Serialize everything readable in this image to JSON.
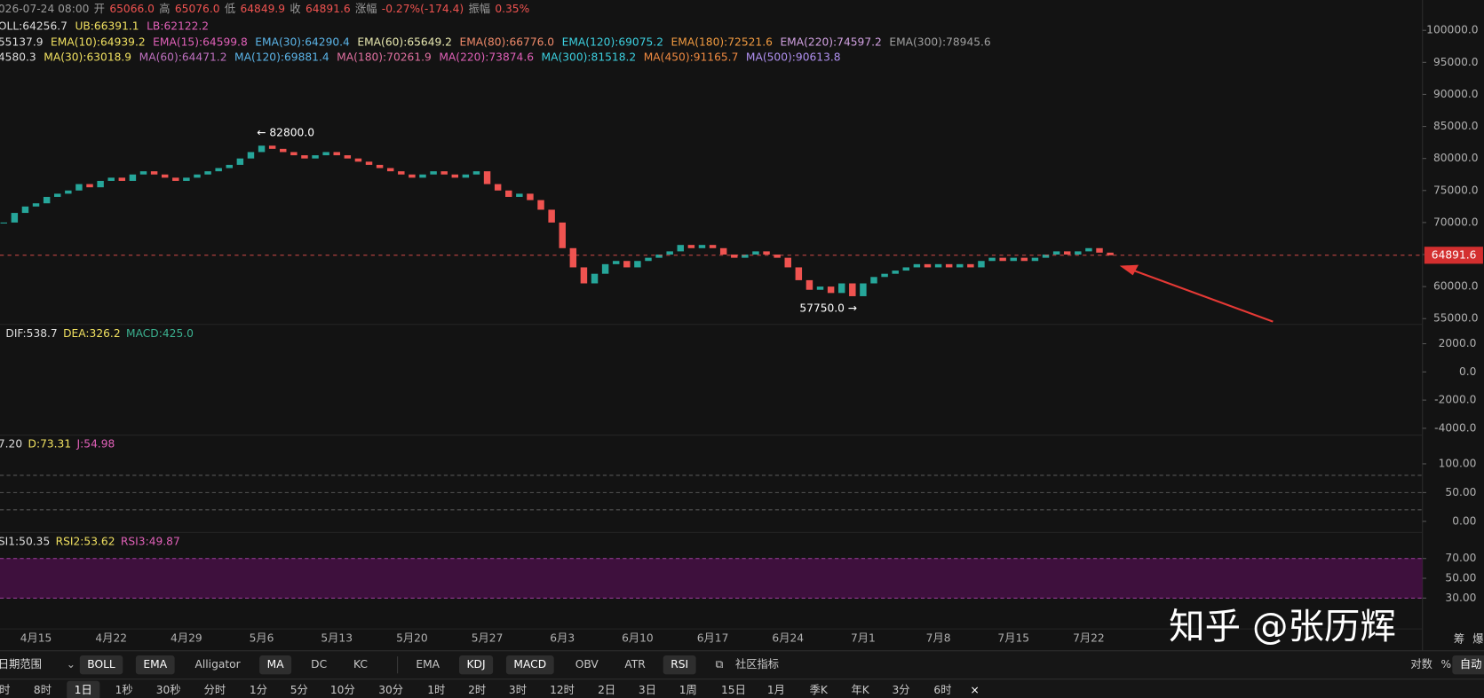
{
  "header": {
    "quote": [
      {
        "text": "026-07-24 08:00",
        "color": "#9a9a9a"
      },
      {
        "text": "开",
        "color": "#9a9a9a"
      },
      {
        "text": "65066.0",
        "color": "#ef5350"
      },
      {
        "text": "高",
        "color": "#9a9a9a"
      },
      {
        "text": "65076.0",
        "color": "#ef5350"
      },
      {
        "text": "低",
        "color": "#9a9a9a"
      },
      {
        "text": "64849.9",
        "color": "#ef5350"
      },
      {
        "text": "收",
        "color": "#9a9a9a"
      },
      {
        "text": "64891.6",
        "color": "#ef5350"
      },
      {
        "text": "涨幅",
        "color": "#9a9a9a"
      },
      {
        "text": "-0.27%(-174.4)",
        "color": "#ef5350"
      },
      {
        "text": "振幅",
        "color": "#9a9a9a"
      },
      {
        "text": "0.35%",
        "color": "#ef5350"
      }
    ],
    "boll": [
      {
        "text": "OLL:64256.7",
        "color": "#dddddd"
      },
      {
        "text": "UB:66391.1",
        "color": "#f0e060"
      },
      {
        "text": "LB:62122.2",
        "color": "#e060b8"
      }
    ],
    "ema": [
      {
        "text": "55137.9",
        "color": "#dddddd"
      },
      {
        "text": "EMA(10):64939.2",
        "color": "#f0e060"
      },
      {
        "text": "EMA(15):64599.8",
        "color": "#e060b8"
      },
      {
        "text": "EMA(30):64290.4",
        "color": "#5bb4e8"
      },
      {
        "text": "EMA(60):65649.2",
        "color": "#e8e8b0"
      },
      {
        "text": "EMA(80):66776.0",
        "color": "#f08a6a"
      },
      {
        "text": "EMA(120):69075.2",
        "color": "#3cd0e0"
      },
      {
        "text": "EMA(180):72521.6",
        "color": "#f09a40"
      },
      {
        "text": "EMA(220):74597.2",
        "color": "#d0a0e0"
      },
      {
        "text": "EMA(300):78945.6",
        "color": "#a0a0a0"
      }
    ],
    "ma": [
      {
        "text": "4580.3",
        "color": "#dddddd"
      },
      {
        "text": "MA(30):63018.9",
        "color": "#f0e060"
      },
      {
        "text": "MA(60):64471.2",
        "color": "#c070c0"
      },
      {
        "text": "MA(120):69881.4",
        "color": "#5bb4e8"
      },
      {
        "text": "MA(180):70261.9",
        "color": "#e070a0"
      },
      {
        "text": "MA(220):73874.6",
        "color": "#e060b8"
      },
      {
        "text": "MA(300):81518.2",
        "color": "#3cd0e0"
      },
      {
        "text": "MA(450):91165.7",
        "color": "#f08a40"
      },
      {
        "text": "MA(500):90613.8",
        "color": "#b090f0"
      }
    ]
  },
  "chart_data": {
    "type": "candlestick",
    "up_color": "#26a69a",
    "down_color": "#ef5350",
    "closes": [
      70000,
      71500,
      72500,
      73000,
      74000,
      74500,
      75000,
      76000,
      75500,
      76500,
      77000,
      76500,
      77500,
      78000,
      77500,
      77000,
      76500,
      77000,
      77500,
      78000,
      78500,
      79000,
      80000,
      81000,
      82000,
      81500,
      81000,
      80500,
      80000,
      80500,
      81000,
      80500,
      80000,
      79500,
      79000,
      78500,
      78000,
      77500,
      77000,
      77500,
      78000,
      77500,
      77000,
      77500,
      78000,
      76000,
      75000,
      74000,
      74500,
      73500,
      72000,
      70000,
      66000,
      63000,
      60500,
      62000,
      63500,
      64000,
      63000,
      64000,
      64500,
      65000,
      65500,
      66500,
      66000,
      66500,
      66000,
      65000,
      64500,
      65000,
      65500,
      65000,
      64500,
      63000,
      61000,
      59500,
      60000,
      59000,
      60500,
      58500,
      60500,
      61500,
      62000,
      62500,
      63000,
      63500,
      63000,
      63500,
      63000,
      63500,
      63000,
      64000,
      64500,
      64000,
      64500,
      64000,
      64500,
      65000,
      65500,
      65000,
      65500,
      66000,
      65300,
      64891.6
    ],
    "categories": [
      null,
      null,
      null,
      "4月15",
      null,
      null,
      null,
      null,
      null,
      null,
      "4月22",
      null,
      null,
      null,
      null,
      null,
      null,
      "4月29",
      null,
      null,
      null,
      null,
      null,
      null,
      "5月6",
      null,
      null,
      null,
      null,
      null,
      null,
      "5月13",
      null,
      null,
      null,
      null,
      null,
      null,
      "5月20",
      null,
      null,
      null,
      null,
      null,
      null,
      "5月27",
      null,
      null,
      null,
      null,
      null,
      null,
      "6月3",
      null,
      null,
      null,
      null,
      null,
      null,
      "6月10",
      null,
      null,
      null,
      null,
      null,
      null,
      "6月17",
      null,
      null,
      null,
      null,
      null,
      null,
      "6月24",
      null,
      null,
      null,
      null,
      null,
      null,
      "7月1",
      null,
      null,
      null,
      null,
      null,
      null,
      "7月8",
      null,
      null,
      null,
      null,
      null,
      null,
      "7月15",
      null,
      null,
      null,
      null,
      null,
      null,
      "7月22",
      null,
      null
    ],
    "ylim": [
      53800,
      104000
    ],
    "yticks": [
      {
        "value": 100000,
        "label": "100000.0"
      },
      {
        "value": 95000,
        "label": "95000.0"
      },
      {
        "value": 90000,
        "label": "90000.0"
      },
      {
        "value": 85000,
        "label": "85000.0"
      },
      {
        "value": 80000,
        "label": "80000.0"
      },
      {
        "value": 75000,
        "label": "75000.0"
      },
      {
        "value": 70000,
        "label": "70000.0"
      },
      {
        "value": 65000,
        "label": "65000.0"
      },
      {
        "value": 60000,
        "label": "60000.0"
      },
      {
        "value": 55000,
        "label": "55000.0"
      }
    ],
    "last_price": {
      "value": 64891.6,
      "label": "64891.6"
    },
    "annotations": [
      {
        "text": "← 82800.0",
        "value": 82800,
        "index": 24,
        "anchor": "start"
      },
      {
        "text": "57750.0 →",
        "value": 57750,
        "index": 79,
        "anchor": "end"
      }
    ]
  },
  "macd": {
    "legend": [
      {
        "text": "DIF:538.7",
        "color": "#dddddd"
      },
      {
        "text": "DEA:326.2",
        "color": "#f0e060"
      },
      {
        "text": "MACD:425.0",
        "color": "#3bb08f"
      }
    ],
    "ylim": [
      -4480,
      3370
    ],
    "yticks": [
      {
        "value": 2000,
        "label": "2000.0"
      },
      {
        "value": 0,
        "label": "0.0"
      },
      {
        "value": -2000,
        "label": "-2000.0"
      },
      {
        "value": -4000,
        "label": "-4000.0"
      }
    ]
  },
  "kdj": {
    "legend": [
      {
        "text": "7.20",
        "color": "#dddddd"
      },
      {
        "text": "D:73.31",
        "color": "#f0e060"
      },
      {
        "text": "J:54.98",
        "color": "#e060b8"
      }
    ],
    "ylim": [
      -19.4,
      150
    ],
    "yticks": [
      {
        "value": 100,
        "label": "100.00"
      },
      {
        "value": 50,
        "label": "50.00"
      },
      {
        "value": 0,
        "label": "0.00"
      }
    ],
    "guides": [
      80,
      50,
      20
    ]
  },
  "rsi": {
    "legend": [
      {
        "text": "SI1:50.35",
        "color": "#dddddd"
      },
      {
        "text": "RSI2:53.62",
        "color": "#f0e060"
      },
      {
        "text": "RSI3:49.87",
        "color": "#e060b8"
      }
    ],
    "ylim": [
      -1.2,
      96.3
    ],
    "yticks": [
      {
        "value": 70,
        "label": "70.00"
      },
      {
        "value": 50,
        "label": "50.00"
      },
      {
        "value": 30,
        "label": "30.00"
      }
    ],
    "band": [
      30,
      70
    ]
  },
  "watermark": "知乎 @张历辉",
  "side_tabs": [
    "筹",
    "爆"
  ],
  "toolbar": {
    "range": "日期范围",
    "indicators": [
      {
        "text": "BOLL",
        "active": true
      },
      {
        "text": "EMA",
        "active": true
      },
      {
        "text": "Alligator",
        "active": false
      },
      {
        "text": "MA",
        "active": true
      },
      {
        "text": "DC",
        "active": false
      },
      {
        "text": "KC",
        "active": false
      },
      {
        "text": "EMA",
        "active": false
      },
      {
        "text": "KDJ",
        "active": true
      },
      {
        "text": "MACD",
        "active": true
      },
      {
        "text": "OBV",
        "active": false
      },
      {
        "text": "ATR",
        "active": false
      },
      {
        "text": "RSI",
        "active": true
      },
      {
        "text": "社区指标",
        "active": false
      }
    ],
    "scale": [
      {
        "text": "对数",
        "active": false
      },
      {
        "text": "%",
        "active": false
      },
      {
        "text": "自动",
        "active": true
      }
    ],
    "periods": [
      {
        "text": "时",
        "active": false
      },
      {
        "text": "8时",
        "active": false
      },
      {
        "text": "1日",
        "active": true
      },
      {
        "text": "1秒",
        "active": false
      },
      {
        "text": "30秒",
        "active": false
      },
      {
        "text": "分时",
        "active": false
      },
      {
        "text": "1分",
        "active": false
      },
      {
        "text": "5分",
        "active": false
      },
      {
        "text": "10分",
        "active": false
      },
      {
        "text": "30分",
        "active": false
      },
      {
        "text": "1时",
        "active": false
      },
      {
        "text": "2时",
        "active": false
      },
      {
        "text": "3时",
        "active": false
      },
      {
        "text": "12时",
        "active": false
      },
      {
        "text": "2日",
        "active": false
      },
      {
        "text": "3日",
        "active": false
      },
      {
        "text": "1周",
        "active": false
      },
      {
        "text": "15日",
        "active": false
      },
      {
        "text": "1月",
        "active": false
      },
      {
        "text": "季K",
        "active": false
      },
      {
        "text": "年K",
        "active": false
      },
      {
        "text": "3分",
        "active": false
      },
      {
        "text": "6时",
        "active": false
      },
      {
        "text": "×",
        "active": true
      }
    ]
  }
}
